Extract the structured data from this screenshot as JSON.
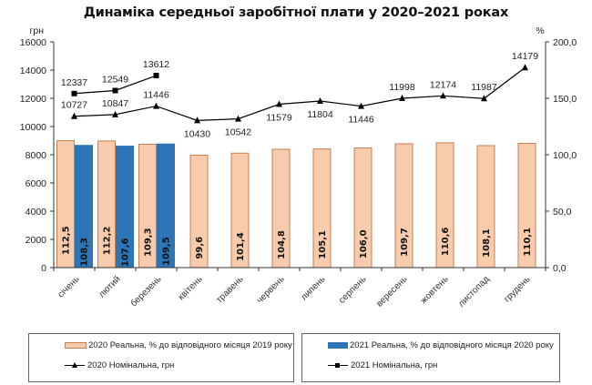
{
  "chart_data": {
    "type": "bar",
    "title": "Динаміка середньої заробітної плати у 2020–2021 роках",
    "categories": [
      "січень",
      "лютий",
      "березень",
      "квітень",
      "травень",
      "червень",
      "липень",
      "серпень",
      "вересень",
      "жовтень",
      "листопад",
      "грудень"
    ],
    "left_axis": {
      "unit": "грн",
      "ylim": [
        0,
        16000
      ],
      "ticks": [
        "0",
        "2000",
        "4000",
        "6000",
        "8000",
        "10000",
        "12000",
        "14000",
        "16000"
      ]
    },
    "right_axis": {
      "unit": "%",
      "ylim": [
        0,
        200
      ],
      "ticks": [
        "0,0",
        "50,0",
        "100,0",
        "150,0",
        "200,0"
      ]
    },
    "grid": false,
    "legend_position": "bottom",
    "series": [
      {
        "name": "2020 Реальна, % до відповідного місяця 2019 року",
        "type": "bar",
        "axis": "right",
        "color": "#F8CBAD",
        "edge": "#C5804F",
        "values": [
          112.5,
          112.2,
          109.3,
          99.6,
          101.4,
          104.8,
          105.1,
          106.0,
          109.7,
          110.6,
          108.1,
          110.1
        ],
        "labels": [
          "112,5",
          "112,2",
          "109,3",
          "99,6",
          "101,4",
          "104,8",
          "105,1",
          "106,0",
          "109,7",
          "110,6",
          "108,1",
          "110,1"
        ]
      },
      {
        "name": "2021 Реальна, % до відповідного місяця 2020 року",
        "type": "bar",
        "axis": "right",
        "color": "#2E75B6",
        "edge": "#2E75B6",
        "values": [
          108.3,
          107.6,
          109.5,
          null,
          null,
          null,
          null,
          null,
          null,
          null,
          null,
          null
        ],
        "labels": [
          "108,3",
          "107,6",
          "109,5"
        ]
      },
      {
        "name": "2020 Номінальна, грн",
        "type": "line",
        "axis": "left",
        "marker": "triangle",
        "color": "#000000",
        "values": [
          10727,
          10847,
          11446,
          10430,
          10542,
          11579,
          11804,
          11446,
          11998,
          12174,
          11987,
          14179
        ]
      },
      {
        "name": "2021 Номінальна, грн",
        "type": "line",
        "axis": "left",
        "marker": "square",
        "color": "#000000",
        "values": [
          12337,
          12549,
          13612,
          null,
          null,
          null,
          null,
          null,
          null,
          null,
          null,
          null
        ]
      }
    ]
  },
  "legend": {
    "items": [
      {
        "label": "2020 Реальна, % до відповідного місяця 2019 року",
        "kind": "bar",
        "color": "#F8CBAD"
      },
      {
        "label": "2021 Реальна, % до відповідного місяця 2020 року",
        "kind": "bar",
        "color": "#2E75B6"
      },
      {
        "label": "2020 Номінальна, грн",
        "kind": "line-triangle"
      },
      {
        "label": "2021 Номінальна, грн",
        "kind": "line-square"
      }
    ]
  }
}
